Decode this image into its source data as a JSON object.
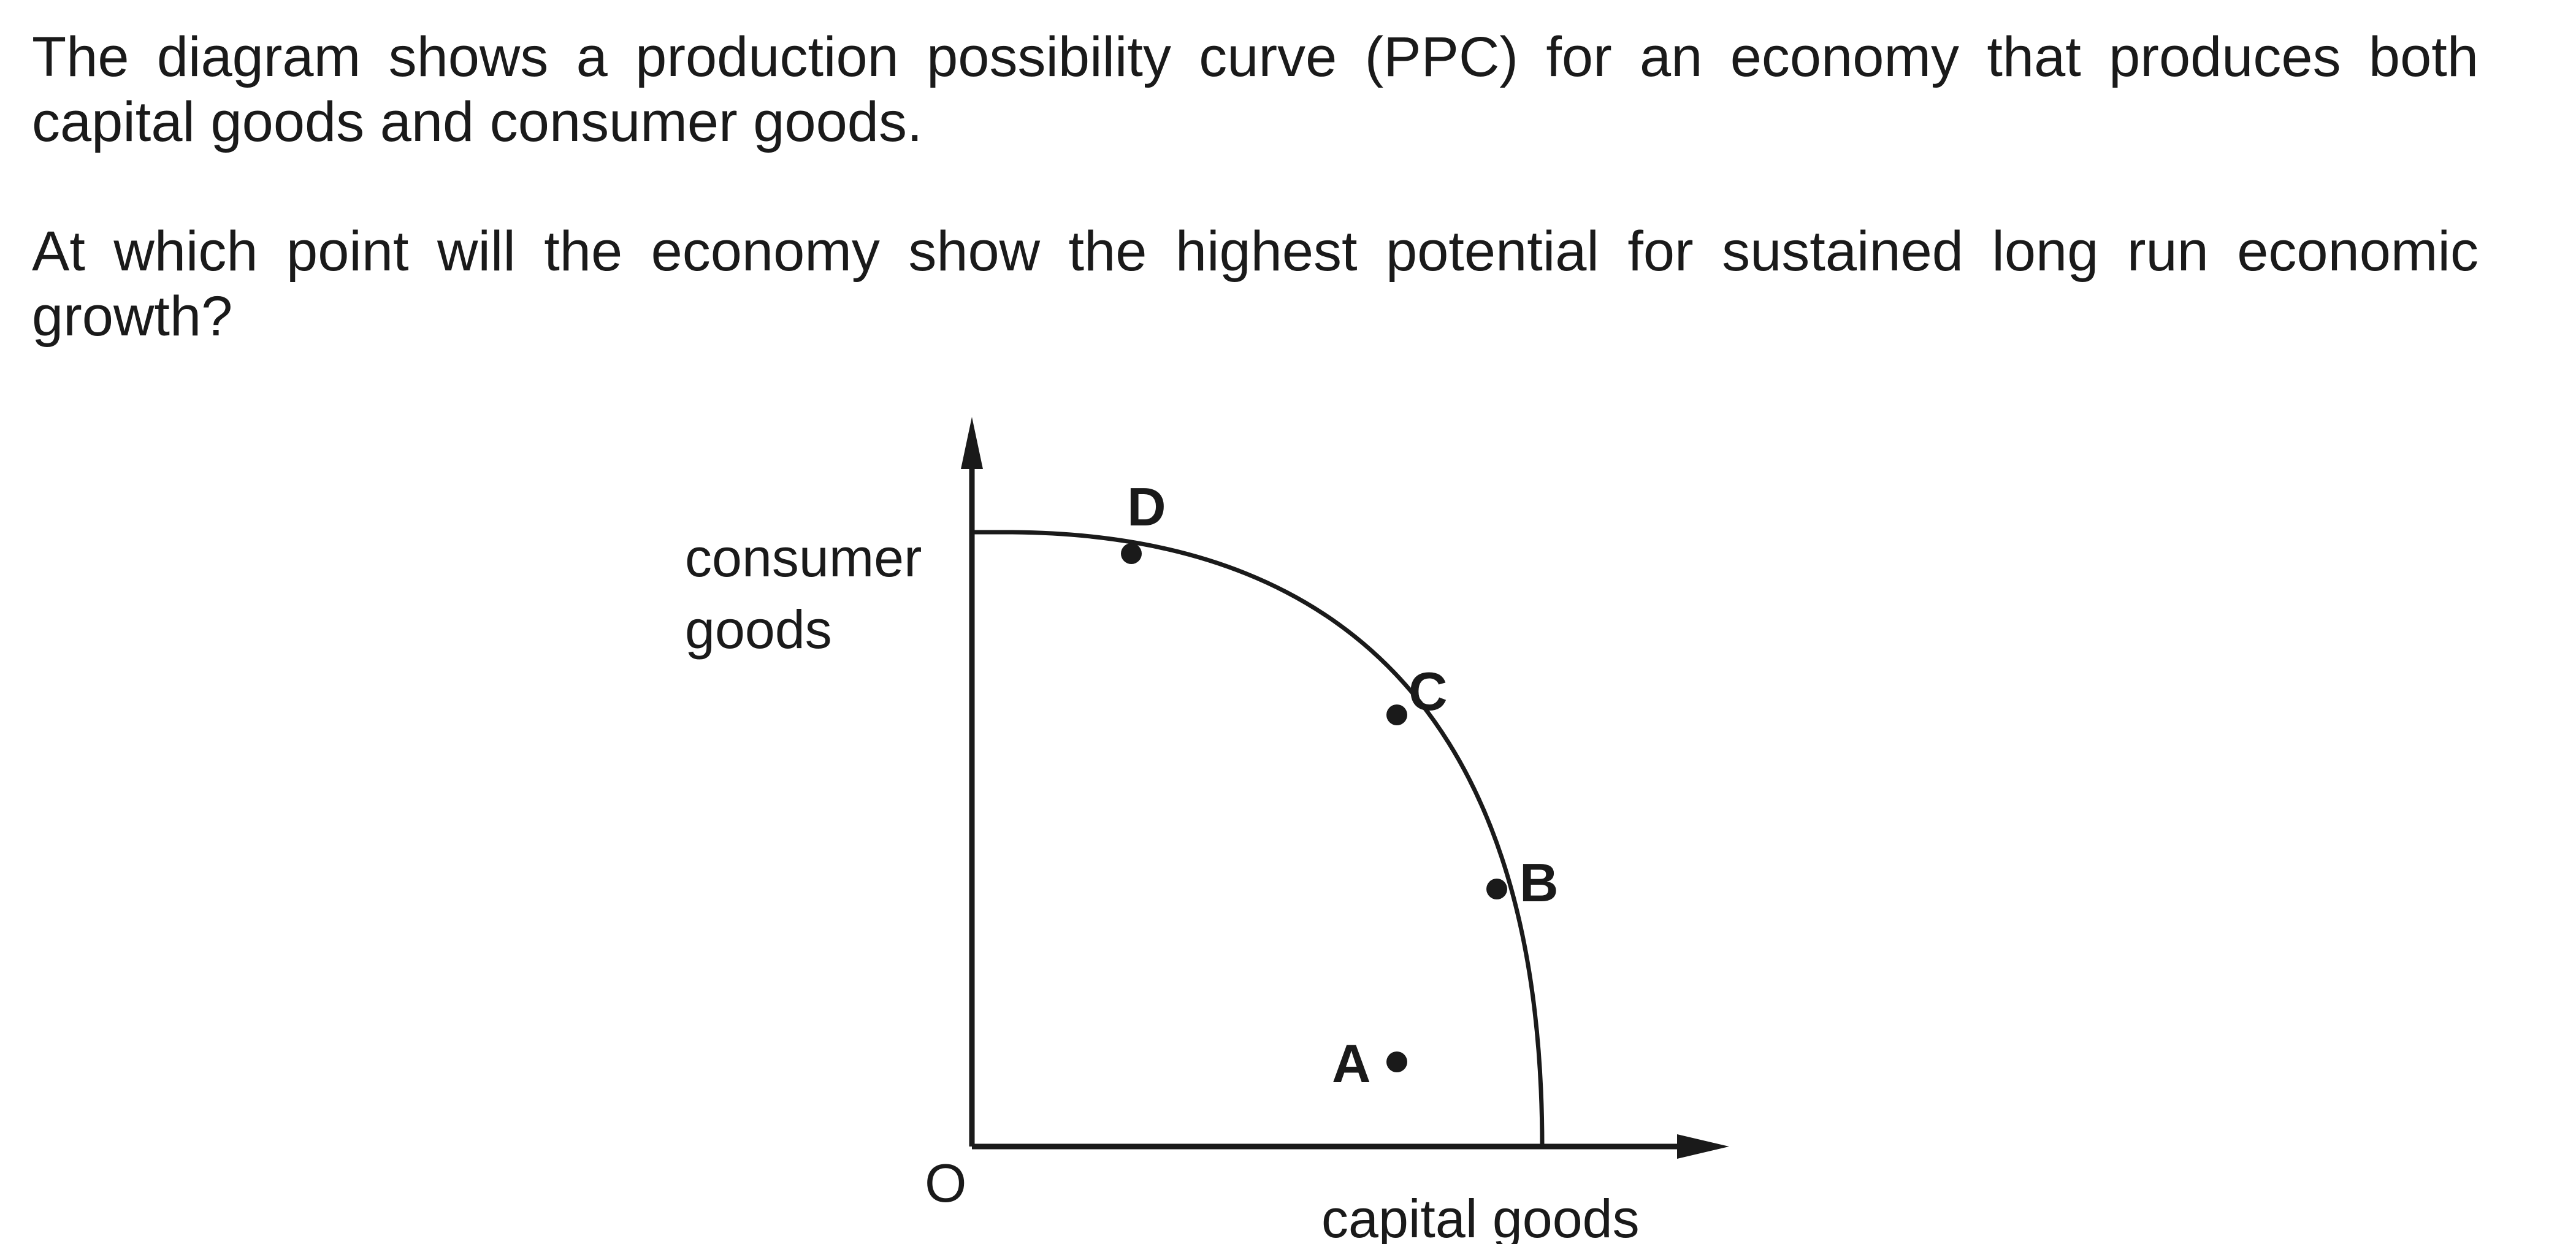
{
  "question": {
    "intro": "The diagram shows a production possibility curve (PPC) for an economy that produces both capital goods and consumer goods.",
    "prompt": "At which point will the economy show the highest potential for sustained long run economic growth?"
  },
  "diagram": {
    "y_axis_label_line1": "consumer",
    "y_axis_label_line2": "goods",
    "x_axis_label": "capital goods",
    "origin_label": "O",
    "points": {
      "A": "A",
      "B": "B",
      "C": "C",
      "D": "D"
    }
  }
}
